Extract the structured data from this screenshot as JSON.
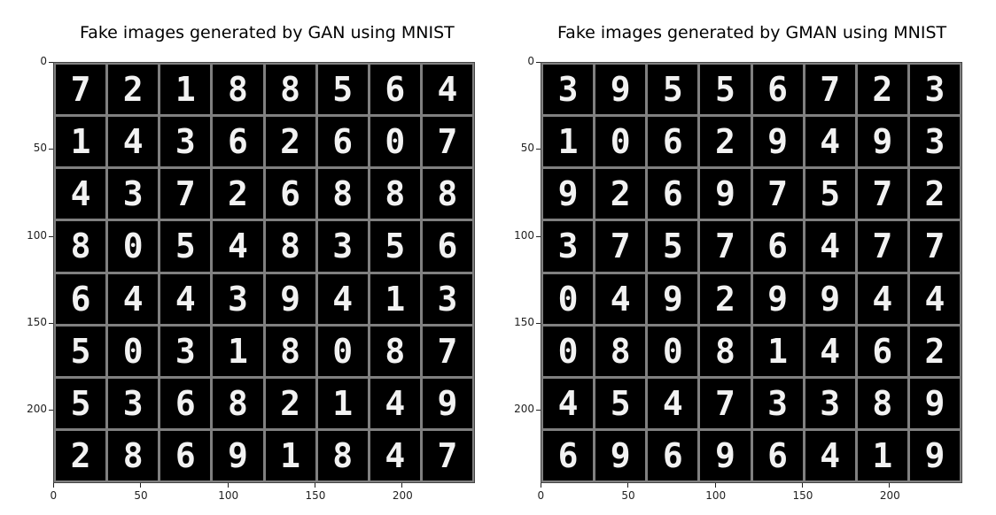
{
  "left": {
    "title": "Fake images generated by GAN using MNIST",
    "digits": [
      "7",
      "2",
      "1",
      "8",
      "8",
      "5",
      "6",
      "4",
      "1",
      "4",
      "3",
      "6",
      "2",
      "6",
      "0",
      "7",
      "4",
      "3",
      "7",
      "2",
      "6",
      "8",
      "8",
      "8",
      "8",
      "0",
      "5",
      "4",
      "8",
      "3",
      "5",
      "6",
      "6",
      "4",
      "4",
      "3",
      "9",
      "4",
      "1",
      "3",
      "5",
      "0",
      "3",
      "1",
      "8",
      "0",
      "8",
      "7",
      "5",
      "3",
      "6",
      "8",
      "2",
      "1",
      "4",
      "9",
      "2",
      "8",
      "6",
      "9",
      "1",
      "8",
      "4",
      "7"
    ],
    "y_ticks": [
      "0",
      "50",
      "100",
      "150",
      "200"
    ],
    "x_ticks": [
      "0",
      "50",
      "100",
      "150",
      "200"
    ]
  },
  "right": {
    "title": "Fake images generated by GMAN using MNIST",
    "digits": [
      "3",
      "9",
      "5",
      "5",
      "6",
      "7",
      "2",
      "3",
      "1",
      "0",
      "6",
      "2",
      "9",
      "4",
      "9",
      "3",
      "9",
      "2",
      "6",
      "9",
      "7",
      "5",
      "7",
      "2",
      "3",
      "7",
      "5",
      "7",
      "6",
      "4",
      "7",
      "7",
      "0",
      "4",
      "9",
      "2",
      "9",
      "9",
      "4",
      "4",
      "0",
      "8",
      "0",
      "8",
      "1",
      "4",
      "6",
      "2",
      "4",
      "5",
      "4",
      "7",
      "3",
      "3",
      "8",
      "9",
      "6",
      "9",
      "6",
      "9",
      "6",
      "4",
      "1",
      "9"
    ],
    "y_ticks": [
      "0",
      "50",
      "100",
      "150",
      "200"
    ],
    "x_ticks": [
      "0",
      "50",
      "100",
      "150",
      "200"
    ]
  }
}
